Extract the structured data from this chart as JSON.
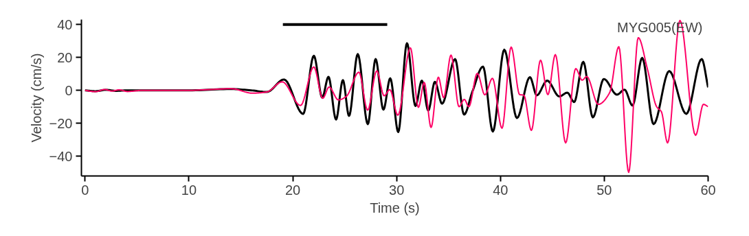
{
  "chart_data": {
    "type": "line",
    "xlabel": "Time (s)",
    "ylabel": "Velocity (cm/s)",
    "xlim": [
      -0.35,
      60
    ],
    "ylim": [
      -52,
      43
    ],
    "xticks": [
      0,
      10,
      20,
      30,
      40,
      50,
      60
    ],
    "yticks": [
      -40,
      -20,
      0,
      20,
      40
    ],
    "grid": false,
    "marker": "none",
    "line_style": "solid",
    "annotations": [
      "MYG005(EW)"
    ],
    "series": [
      {
        "color": "#000000",
        "x": [
          0,
          1,
          2,
          3,
          4,
          6,
          10,
          14,
          16,
          17.5,
          19.16,
          21.0,
          22.03,
          22.84,
          23.44,
          24.17,
          24.83,
          25.42,
          26.26,
          27.23,
          27.98,
          28.73,
          29.39,
          30.16,
          31.0,
          31.82,
          32.43,
          33.05,
          33.69,
          34.38,
          35.63,
          36.5,
          37.29,
          38.32,
          39.27,
          40.37,
          41.59,
          42.84,
          43.5,
          44.5,
          45.67,
          46.44,
          47.1,
          47.98,
          48.9,
          49.96,
          51.22,
          51.95,
          52.72,
          53.65,
          54.75,
          56.25,
          57.9,
          59.38,
          60
        ],
        "values": [
          0,
          -0.5,
          0.3,
          -0.3,
          0,
          0,
          0,
          0.8,
          0,
          -1,
          6.6,
          -14.3,
          21,
          -4.4,
          8.2,
          -17.7,
          6.2,
          -15.5,
          22,
          -20.5,
          19,
          -11.7,
          7.3,
          -25.3,
          28.6,
          -9.5,
          5.9,
          -12.2,
          5.2,
          -8.1,
          19,
          -14.7,
          -1,
          14.4,
          -25,
          24.7,
          -16.8,
          8,
          -3,
          5.9,
          -3.7,
          -1.4,
          -7.1,
          17.3,
          -16.4,
          6.9,
          -2.6,
          0.4,
          -9.2,
          19.7,
          -20.5,
          11.7,
          -14.3,
          19,
          1.8
        ]
      },
      {
        "color": "#ff0066",
        "x": [
          0,
          1.0,
          1.9,
          2.56,
          3.29,
          4.1,
          5.5,
          10,
          14.1,
          16.1,
          17.5,
          18.99,
          20.75,
          22.03,
          22.89,
          23.5,
          24.39,
          25.16,
          26.37,
          27.21,
          28.09,
          28.8,
          29.35,
          30.12,
          31.33,
          32.1,
          32.66,
          33.32,
          34.02,
          34.53,
          35.24,
          36.01,
          36.52,
          36.96,
          37.77,
          38.5,
          39.23,
          40.15,
          41.03,
          41.85,
          42.25,
          42.98,
          43.86,
          44.57,
          45.29,
          46.28,
          47.25,
          47.87,
          48.31,
          49.42,
          50.52,
          51.4,
          52.35,
          53.27,
          54.16,
          55.04,
          55.5,
          56.1,
          57.29,
          58.79,
          59.55,
          60
        ],
        "values": [
          0,
          -0.8,
          0.5,
          -0.4,
          0.3,
          -0.7,
          0,
          0,
          1,
          -1.7,
          -1,
          5.2,
          -9.2,
          14.2,
          -4.8,
          2,
          -5.8,
          -3.7,
          11,
          -12,
          11.8,
          -3.3,
          0.4,
          -15.1,
          25.8,
          -10.3,
          4.8,
          -22.5,
          8,
          -4.4,
          21.4,
          -9.9,
          -5.5,
          -9.9,
          10.3,
          -2.7,
          7.3,
          -23,
          26.3,
          -2.6,
          -2.9,
          -24.3,
          18.3,
          -2.6,
          21.7,
          -31.9,
          13.2,
          6.2,
          8.4,
          -8.5,
          -1.4,
          26.5,
          -49.8,
          32,
          12.8,
          -9.9,
          -13,
          -31.9,
          42.5,
          -27.3,
          -8.5,
          -9.9
        ]
      },
      {
        "color": "#000000",
        "x": [
          19.05,
          29.1
        ],
        "values": [
          40,
          40
        ]
      }
    ]
  }
}
